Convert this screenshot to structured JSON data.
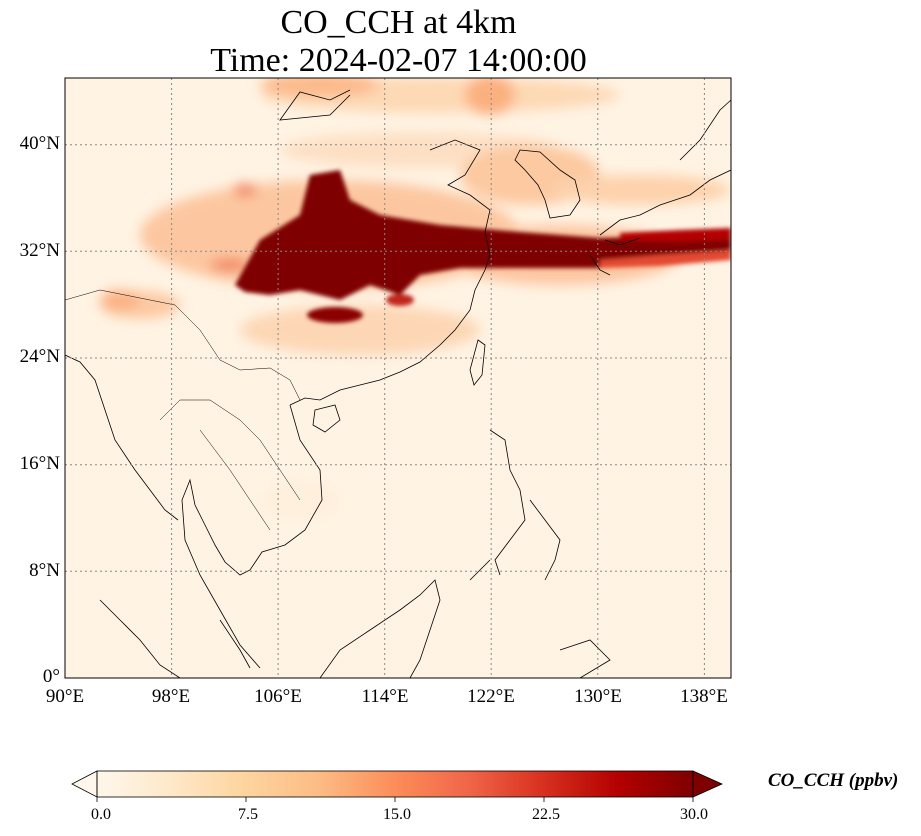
{
  "title": {
    "line1": "CO_CCH at 4km",
    "line2": "Time: 2024-02-07 14:00:00"
  },
  "map": {
    "extent": {
      "lon": [
        90,
        140
      ],
      "lat": [
        0,
        45
      ]
    },
    "gridlines": "dotted",
    "colormap": "OrRd",
    "lon_ticks": [
      "90°E",
      "98°E",
      "106°E",
      "114°E",
      "122°E",
      "130°E",
      "138°E"
    ],
    "lat_ticks": [
      "0°",
      "8°N",
      "16°N",
      "24°N",
      "32°N",
      "40°N"
    ],
    "lon_tick_values": [
      90,
      98,
      106,
      114,
      122,
      130,
      138
    ],
    "lat_tick_values": [
      0,
      8,
      16,
      24,
      32,
      40
    ]
  },
  "colorbar": {
    "label": "CO_CCH (ppbv)",
    "ticks": [
      "0.0",
      "7.5",
      "15.0",
      "22.5",
      "30.0"
    ],
    "tick_values": [
      0,
      7.5,
      15,
      22.5,
      30
    ],
    "range": [
      0,
      30
    ],
    "extend": "both",
    "colors": [
      "#fff7ec",
      "#fee8c8",
      "#fdd49e",
      "#fdbb84",
      "#fc8d59",
      "#ef6548",
      "#d7301f",
      "#b30000",
      "#7f0000"
    ]
  },
  "colors": {
    "background_field": "#fff3e3",
    "plume": "#7f0000",
    "coastline": "#000000",
    "grid": "#888888"
  }
}
